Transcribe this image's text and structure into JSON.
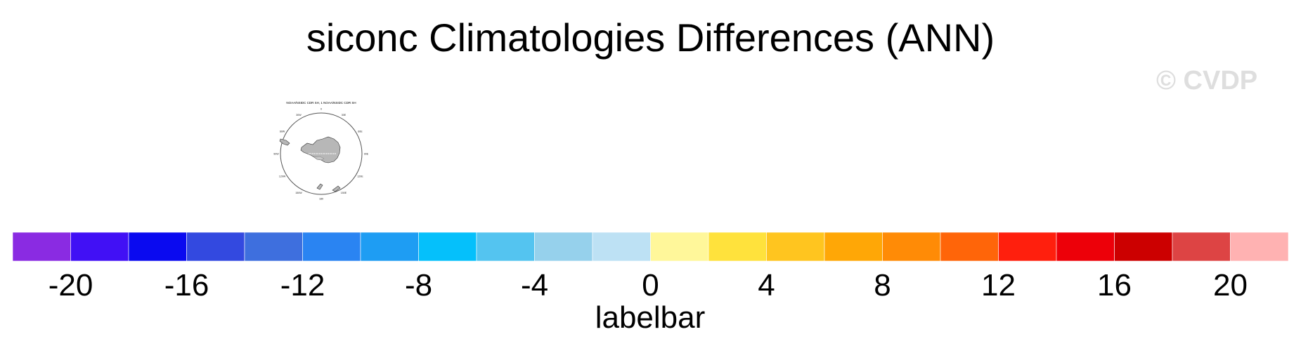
{
  "title": "siconc Climatologies Differences (ANN)",
  "watermark": "© CVDP",
  "panel": {
    "label": "NOAA/NSIDC CDR SH, 1 NOAA/NSIDC CDR SH",
    "map": "south-polar-stereographic",
    "longitude_labels": [
      "0",
      "30E",
      "60E",
      "90E",
      "120E",
      "150E",
      "180",
      "150W",
      "120W",
      "90W",
      "60W",
      "30W"
    ]
  },
  "chart_data": {
    "type": "colorbar",
    "title": "siconc Climatologies Differences (ANN)",
    "xlabel": "labelbar",
    "levels": [
      -22,
      -20,
      -18,
      -16,
      -14,
      -12,
      -10,
      -8,
      -6,
      -4,
      -2,
      0,
      2,
      4,
      6,
      8,
      10,
      12,
      14,
      16,
      18,
      20,
      22
    ],
    "colors": [
      "#8a2be2",
      "#4110f5",
      "#0a0af0",
      "#3349e0",
      "#3e6fde",
      "#2a84f2",
      "#1e9df3",
      "#05c0fb",
      "#54c4f0",
      "#96d1ec",
      "#bde1f4",
      "#fff79a",
      "#ffe23c",
      "#ffc51f",
      "#ffa706",
      "#ff8b06",
      "#ff6509",
      "#ff1f0d",
      "#ed0009",
      "#cc0000",
      "#dd4444",
      "#ffb2b2"
    ],
    "tick_labels": [
      "-20",
      "-16",
      "-12",
      "-8",
      "-4",
      "0",
      "4",
      "8",
      "12",
      "16",
      "20"
    ],
    "xlim": [
      -22,
      22
    ]
  }
}
